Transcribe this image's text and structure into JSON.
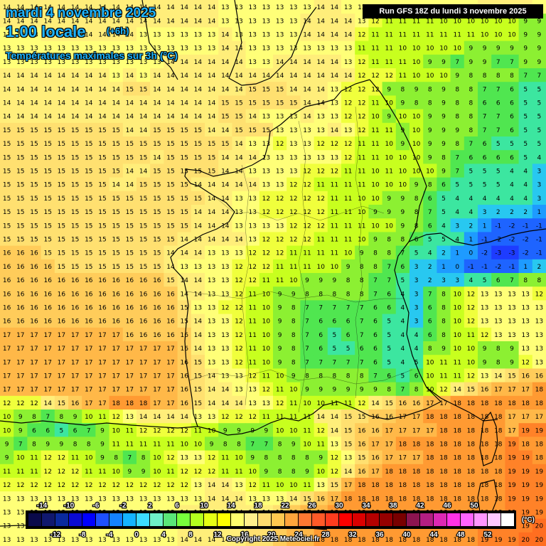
{
  "header": {
    "date": "mardi 4 novembre 2025",
    "hour": "1:00 locale",
    "offset": "(+6h)",
    "subtitle": "Températures maximales sur 3h (°C)",
    "run": "Run GFS 18Z du lundi 3 novembre 2025"
  },
  "footer": {
    "copyright": "Copyright 2025 Meteociel.fr"
  },
  "legend": {
    "unit": "(°C)",
    "labels_top": [
      "-14",
      "-10",
      "-6",
      "-2",
      "2",
      "6",
      "10",
      "14",
      "18",
      "22",
      "26",
      "30",
      "34",
      "38",
      "42",
      "46",
      "50"
    ],
    "labels_bottom": [
      "-12",
      "-8",
      "-4",
      "0",
      "4",
      "8",
      "12",
      "16",
      "20",
      "24",
      "28",
      "32",
      "36",
      "40",
      "44",
      "48",
      "52"
    ],
    "colors": [
      "#0a0a4a",
      "#10186e",
      "#0a2a9e",
      "#0a0ad2",
      "#0000ff",
      "#1e50ff",
      "#1482ff",
      "#14b4ff",
      "#3cdcff",
      "#6ef0c8",
      "#5ae678",
      "#78ff3c",
      "#b4ff1e",
      "#e6ff14",
      "#ffff00",
      "#ffff6e",
      "#fff08c",
      "#ffdc6e",
      "#ffc850",
      "#ffa53c",
      "#ff7832",
      "#ff5a28",
      "#ff3c1e",
      "#ff0000",
      "#dc0000",
      "#b40000",
      "#960000",
      "#780000",
      "#8c1450",
      "#b41e82",
      "#dc28b4",
      "#ff32e6",
      "#ff64ff",
      "#ff96ff",
      "#ffc8ff",
      "#ffffff"
    ]
  },
  "grid": {
    "rows": [
      "14 14 14 14 14 14 14 14 14 14 14 14 14 14 14 14 13 13 13 13 13 13 13 14 14 13 13 13 13 13 13 13 13 13 13 14 14 14 14 13",
      "14 14 14 14 14 14 14 14 14 14 14 14 14 14 14 14 13 13 13 13 13 13 14 14 14 14 13 12 11 11 11 11 10 10 10 10 10 10 9 9",
      "13 13 13 14 14 14 14 14 14 14 13 13 13 13 13 13 14 13 13 13 13 13 14 14 14 14 12 11 11 11 11 11 11 11 11 10 10 10 9 9",
      "13 13 13 13 13 13 13 13 13 13 13 13 13 13 13 13 14 14 13 13 13 13 13 13 13 13 11 11 11 10 10 10 10 10 9 9 9 9 9 9",
      "13 13 13 13 13 13 13 13 13 13 13 13 14 14 14 14 14 14 13 13 14 14 14 14 14 13 12 11 11 11 10 9 9 7 9 9 7 7 9 9",
      "14 14 14 14 14 14 14 14 13 14 13 14 14 14 14 14 14 14 14 14 14 14 14 14 14 14 12 12 12 11 10 10 10 9 8 8 8 8 7 7",
      "14 14 14 14 14 14 14 14 14 15 15 14 14 14 14 14 14 14 15 15 15 14 14 14 13 12 12 12 9 8 9 8 9 8 8 7 7 6 5 5",
      "14 14 14 14 14 14 14 14 14 14 14 14 14 14 14 14 15 15 15 15 15 15 14 14 13 12 12 11 10 9 8 8 9 8 8 6 6 6 5 5",
      "14 14 14 14 14 14 14 14 14 14 14 14 14 14 14 14 15 15 14 13 13 13 14 13 13 12 12 10 9 10 10 9 9 8 8 7 7 6 5 5",
      "15 15 15 15 15 15 15 15 15 14 14 15 15 15 15 14 14 15 15 15 13 13 13 13 14 13 12 11 11 9 10 9 9 9 8 7 7 6 5 5",
      "15 15 15 15 15 15 15 15 15 15 15 15 15 15 15 15 15 14 13 13 12 13 13 12 12 12 11 11 10 9 10 9 9 8 7 6 5 5 5 5",
      "15 15 15 15 15 15 15 15 15 15 15 14 15 15 15 15 14 14 14 13 13 13 13 13 13 12 11 11 10 10 10 9 8 7 6 6 6 6 5 4",
      "15 15 15 15 15 15 15 15 15 14 14 15 15 15 15 15 14 14 13 13 13 13 12 12 12 11 11 10 11 10 10 10 9 7 5 5 5 4 4 3",
      "15 15 15 15 15 15 15 15 14 14 15 15 15 15 14 14 14 14 14 13 13 12 12 11 11 11 11 10 10 10 9 8 6 5 5 5 5 4 4 3",
      "15 15 15 15 15 15 15 15 15 15 15 15 15 15 15 14 14 13 13 12 12 12 12 12 11 11 10 10 9 9 8 6 5 4 4 4 4 4 4 3",
      "15 15 15 15 15 15 15 15 15 15 15 15 15 15 14 14 14 13 13 12 12 12 12 12 11 11 10 9 9 9 8 7 5 4 4 3 2 2 2 1",
      "15 15 15 15 15 15 15 15 15 15 15 15 15 15 14 14 14 13 13 13 13 12 12 12 11 11 11 10 10 9 8 6 4 3 2 1 -1 -2 -1 -1",
      "15 15 15 15 15 15 15 15 15 15 15 15 15 14 14 14 14 14 13 12 12 12 12 11 11 11 10 9 8 8 6 5 5 4 1 -1 -2 -2 -2 -1",
      "16 16 16 15 15 15 15 15 15 15 15 15 14 14 14 13 13 13 12 12 12 11 11 11 11 10 9 8 8 7 5 4 2 1 0 -2 -3 -3 -2 -1",
      "16 16 16 16 15 15 15 15 15 15 15 15 14 13 13 13 13 12 12 12 11 11 11 10 10 9 8 8 7 6 3 2 1 0 -1 -1 -2 -1 1 2",
      "16 16 16 16 16 16 16 16 16 16 16 16 15 14 14 13 13 12 12 11 11 10 9 9 9 8 8 7 7 5 3 2 3 3 4 5 6 7 8 8",
      "16 16 16 16 16 16 16 16 16 16 16 16 16 14 14 13 13 12 11 10 9 9 8 8 8 8 8 7 6 4 3 7 8 10 12 13 13 13 13 12",
      "16 16 16 16 16 16 16 16 16 16 16 16 16 15 13 13 12 12 11 10 9 8 7 7 7 7 7 6 6 4 3 6 8 10 12 13 13 13 13 13",
      "16 16 16 16 16 16 16 16 16 16 16 16 16 15 14 13 13 12 11 10 9 8 7 6 6 6 7 6 5 4 3 6 8 10 12 13 13 13 13 13",
      "17 17 17 17 17 17 17 17 17 16 16 16 16 16 14 13 13 12 11 10 9 8 7 6 5 6 7 6 5 4 4 6 8 10 11 12 13 13 13 13",
      "17 17 17 17 17 17 17 17 17 17 17 17 17 16 14 13 13 12 11 10 9 8 7 6 5 5 6 6 5 4 4 8 9 10 10 9 8 9 13 13",
      "17 17 17 17 17 17 17 17 17 17 17 17 17 16 15 13 13 12 11 10 9 8 7 7 7 7 7 6 5 4 5 10 11 11 10 9 8 9 12 13",
      "17 17 17 17 17 17 17 17 17 17 17 17 17 16 15 14 13 13 12 11 10 9 8 8 8 8 8 7 6 5 6 10 11 11 12 13 14 15 16 16",
      "17 17 17 17 17 17 17 17 17 17 17 17 17 16 15 14 14 13 13 12 11 10 9 9 9 9 9 9 8 7 8 10 12 14 15 16 17 17 17 18",
      "12 12 12 14 15 16 17 17 18 18 18 17 17 16 15 14 14 14 13 13 12 11 10 10 11 11 12 14 15 16 16 17 17 18 18 18 18 18 18 18",
      "10 9 8 7 8 9 10 11 12 13 14 14 14 14 13 13 12 12 12 11 11 11 11 14 14 15 15 16 16 17 17 18 18 18 18 18 18 17 17 17",
      "10 9 6 6 5 6 7 9 10 11 12 12 12 12 11 10 9 9 9 9 10 10 11 12 14 15 16 16 17 17 17 17 18 18 18 18 18 17 19 19",
      "9 7 8 9 9 8 8 9 11 11 11 11 11 10 10 9 8 8 7 7 8 9 10 11 13 15 16 17 17 18 18 18 18 18 18 18 18 19 18 18",
      "9 10 11 12 12 11 10 9 8 7 8 10 12 13 13 12 11 10 9 8 8 8 8 9 12 13 15 16 17 17 17 18 18 18 18 18 18 19 19 18",
      "11 11 11 12 12 12 11 11 10 9 9 10 11 12 12 12 11 11 10 9 8 8 9 10 12 14 16 17 18 18 18 18 18 18 18 18 18 19 19 19",
      "12 12 12 12 12 12 12 12 12 12 12 12 12 12 13 14 14 13 12 11 10 10 11 13 15 17 18 18 18 18 18 18 18 18 18 18 18 19 19 19",
      "13 13 13 13 13 13 13 13 13 13 13 13 13 13 13 14 14 14 13 13 13 14 15 16 17 18 18 18 18 18 18 18 18 18 18 18 18 19 19 19",
      "13 13 13 13 13 13 13 13 13 13 13 13 13 14 14 14 14 14 14 14 15 16 17 17 18 18 18 18 18 18 18 18 18 18 18 18 18 19 19 19",
      "13 13 13 13 13 13 13 13 13 13 13 13 13 14 14 14 14 14 15 15 16 17 17 18 18 18 18 18 18 18 18 18 18 18 18 19 19 19 19 20",
      "13 13 13 13 13 13 13 13 13 13 13 13 13 14 14 14 14 14 15 15 16 17 17 18 18 18 18 18 18 18 18 18 18 18 18 19 19 19 20 20"
    ]
  }
}
